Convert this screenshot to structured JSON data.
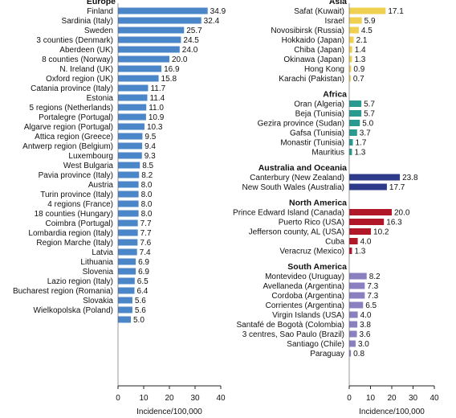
{
  "chart_data": {
    "type": "bar",
    "orientation": "horizontal",
    "xlabel": "Incidence/100,000",
    "xlim": [
      0,
      40
    ],
    "xticks": [
      0,
      10,
      20,
      30,
      40
    ],
    "panels": [
      {
        "groups": [
          {
            "name": "Europe",
            "color": "#4a86c8",
            "items": [
              {
                "label": "Finland",
                "value": 34.9
              },
              {
                "label": "Sardinia (Italy)",
                "value": 32.4
              },
              {
                "label": "Sweden",
                "value": 25.7
              },
              {
                "label": "3 counties (Denmark)",
                "value": 24.5
              },
              {
                "label": "Aberdeen (UK)",
                "value": 24.0
              },
              {
                "label": "8 counties (Norway)",
                "value": 20.0
              },
              {
                "label": "N. Ireland (UK)",
                "value": 16.9
              },
              {
                "label": "Oxford region (UK)",
                "value": 15.8
              },
              {
                "label": "Catania province (Italy)",
                "value": 11.7
              },
              {
                "label": "Estonia",
                "value": 11.4
              },
              {
                "label": "5 regions (Netherlands)",
                "value": 11.0
              },
              {
                "label": "Portalegre (Portugal)",
                "value": 10.9
              },
              {
                "label": "Algarve region (Portugal)",
                "value": 10.3
              },
              {
                "label": "Attica region (Greece)",
                "value": 9.5
              },
              {
                "label": "Antwerp region (Belgium)",
                "value": 9.4
              },
              {
                "label": "Luxembourg",
                "value": 9.3
              },
              {
                "label": "West Bulgaria",
                "value": 8.5
              },
              {
                "label": "Pavia province (Italy)",
                "value": 8.2
              },
              {
                "label": "Austria",
                "value": 8.0
              },
              {
                "label": "Turin province (Italy)",
                "value": 8.0
              },
              {
                "label": "4 regions (France)",
                "value": 8.0
              },
              {
                "label": "18 counties (Hungary)",
                "value": 8.0
              },
              {
                "label": "Coimbra (Portugal)",
                "value": 7.7
              },
              {
                "label": "Lombardia region (Italy)",
                "value": 7.7
              },
              {
                "label": "Region Marche (Italy)",
                "value": 7.6
              },
              {
                "label": "Latvia",
                "value": 7.4
              },
              {
                "label": "Lithuania",
                "value": 6.9
              },
              {
                "label": "Slovenia",
                "value": 6.9
              },
              {
                "label": "Lazio region (Italy)",
                "value": 6.5
              },
              {
                "label": "Bucharest region (Romania)",
                "value": 6.4
              },
              {
                "label": "Slovakia",
                "value": 5.6
              },
              {
                "label": "Wielkopolska (Poland)",
                "value": 5.6
              },
              {
                "label": "",
                "value": 5.0
              }
            ]
          }
        ]
      },
      {
        "groups": [
          {
            "name": "Asia",
            "color": "#f0d050",
            "items": [
              {
                "label": "Safat (Kuwait)",
                "value": 17.1
              },
              {
                "label": "Israel",
                "value": 5.9
              },
              {
                "label": "Novosibirsk (Russia)",
                "value": 4.5
              },
              {
                "label": "Hokkaido (Japan)",
                "value": 2.1
              },
              {
                "label": "Chiba (Japan)",
                "value": 1.4
              },
              {
                "label": "Okinawa (Japan)",
                "value": 1.3
              },
              {
                "label": "Hong Kong",
                "value": 0.9
              },
              {
                "label": "Karachi (Pakistan)",
                "value": 0.7
              }
            ]
          },
          {
            "name": "Africa",
            "color": "#2a9a90",
            "items": [
              {
                "label": "Oran (Algeria)",
                "value": 5.7
              },
              {
                "label": "Beja (Tunisia)",
                "value": 5.7
              },
              {
                "label": "Gezira province (Sudan)",
                "value": 5.0
              },
              {
                "label": "Gafsa (Tunisia)",
                "value": 3.7
              },
              {
                "label": "Monastir (Tunisia)",
                "value": 1.7
              },
              {
                "label": "Mauritius",
                "value": 1.3
              }
            ]
          },
          {
            "name": "Australia and Oceania",
            "color": "#2e3a8a",
            "items": [
              {
                "label": "Canterbury (New Zealand)",
                "value": 23.8
              },
              {
                "label": "New South Wales (Australia)",
                "value": 17.7
              }
            ]
          },
          {
            "name": "North America",
            "color": "#b0182a",
            "items": [
              {
                "label": "Prince Edward Island (Canada)",
                "value": 20.0
              },
              {
                "label": "Puerto Rico (USA)",
                "value": 16.3
              },
              {
                "label": "Jefferson county, AL (USA)",
                "value": 10.2
              },
              {
                "label": "Cuba",
                "value": 4.0
              },
              {
                "label": "Veracruz (Mexico)",
                "value": 1.3
              }
            ]
          },
          {
            "name": "South America",
            "color": "#8a80c0",
            "items": [
              {
                "label": "Montevideo (Uruguay)",
                "value": 8.2
              },
              {
                "label": "Avellaneda (Argentina)",
                "value": 7.3
              },
              {
                "label": "Cordoba (Argentina)",
                "value": 7.3
              },
              {
                "label": "Corrientes (Argentina)",
                "value": 6.5
              },
              {
                "label": "Virgin Islands (USA)",
                "value": 4.0
              },
              {
                "label": "Santafé de Bogotà (Colombia)",
                "value": 3.8
              },
              {
                "label": "3 centres, Sao Paulo (Brazil)",
                "value": 3.6
              },
              {
                "label": "Santiago (Chile)",
                "value": 3.0
              },
              {
                "label": "Paraguay",
                "value": 0.8
              }
            ]
          }
        ]
      }
    ]
  }
}
